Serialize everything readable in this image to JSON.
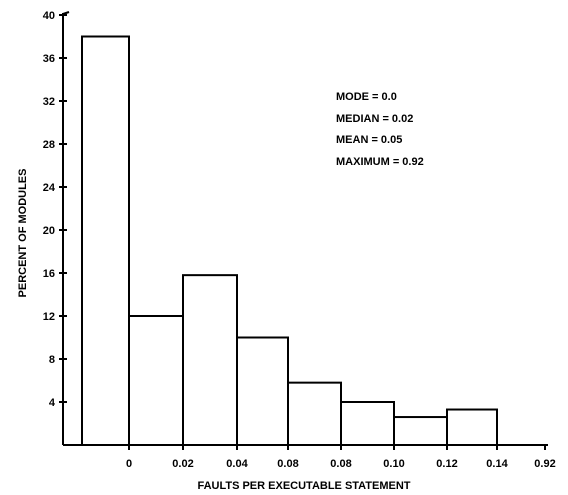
{
  "chart_data": {
    "type": "bar",
    "title": "",
    "xlabel": "FAULTS PER EXECUTABLE STATEMENT",
    "ylabel": "PERCENT OF MODULES",
    "ylim": [
      0,
      40
    ],
    "yticks": [
      "4",
      "8",
      "12",
      "16",
      "20",
      "24",
      "28",
      "32",
      "36",
      "40"
    ],
    "xticks": [
      "0",
      "0.02",
      "0.04",
      "0.08",
      "0.08",
      "0.10",
      "0.12",
      "0.14",
      "0.92"
    ],
    "categories": [
      "0",
      "0–0.02",
      "0.02–0.04",
      "0.04–0.06",
      "0.06–0.08",
      "0.08–0.10",
      "0.10–0.12",
      "0.12–0.14"
    ],
    "values": [
      38,
      12,
      15.8,
      10,
      5.8,
      4,
      2.6,
      3.3
    ],
    "grid": false,
    "legend": "none",
    "annotations": [
      "MODE = 0.0",
      "MEDIAN = 0.02",
      "MEAN = 0.05",
      "MAXIMUM = 0.92"
    ]
  }
}
